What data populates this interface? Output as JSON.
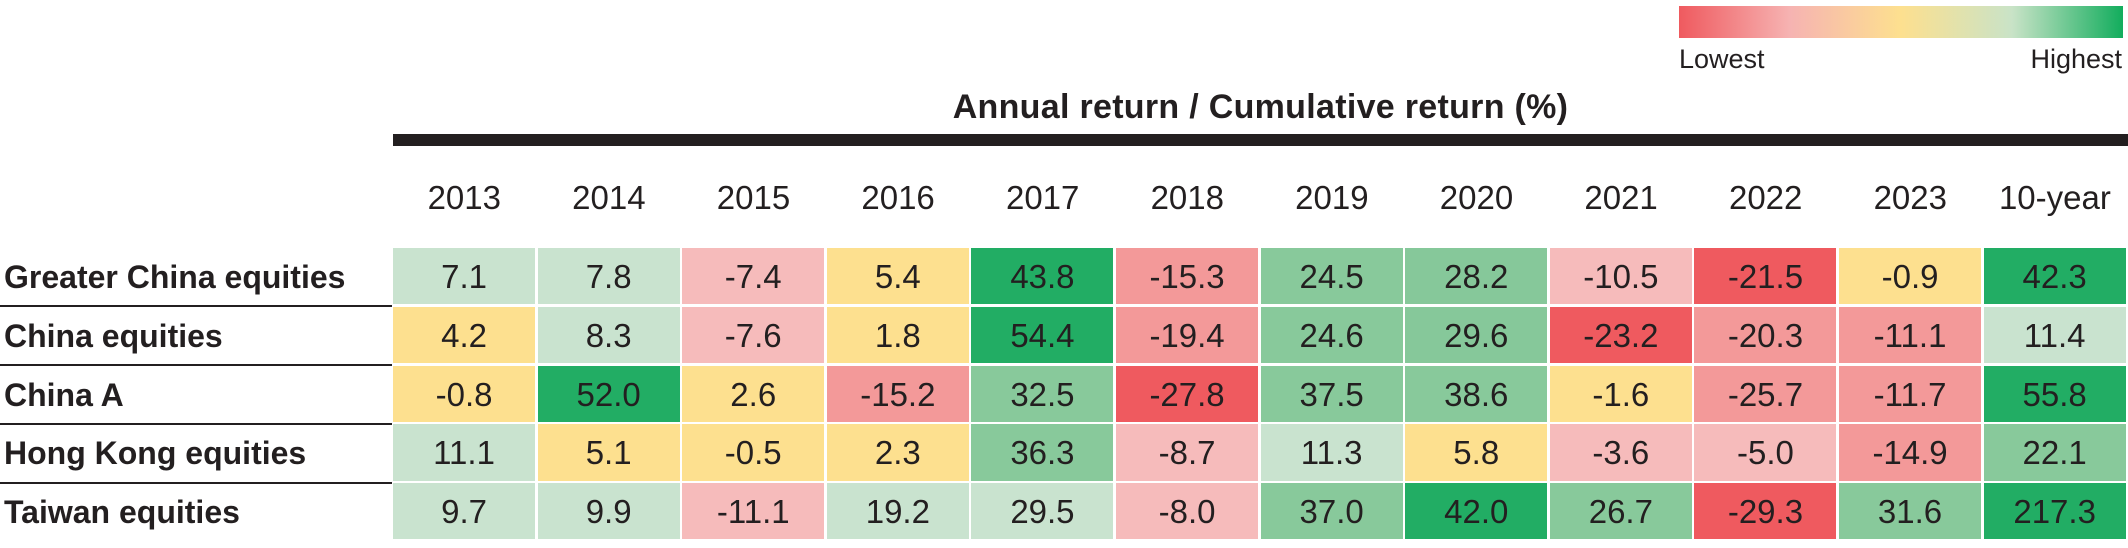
{
  "legend": {
    "low_label": "Lowest",
    "high_label": "Highest",
    "colors": [
      "#ef5a5f",
      "#f6b3b2",
      "#fde08f",
      "#c9e3c7",
      "#12ad5d"
    ]
  },
  "chart_data": {
    "type": "heatmap",
    "title": "Annual return / Cumulative return (%)",
    "columns": [
      "2013",
      "2014",
      "2015",
      "2016",
      "2017",
      "2018",
      "2019",
      "2020",
      "2021",
      "2022",
      "2023",
      "10-year"
    ],
    "rows": [
      {
        "label": "Greater China equities",
        "values": [
          "7.1",
          "7.8",
          "-7.4",
          "5.4",
          "43.8",
          "-15.3",
          "24.5",
          "28.2",
          "-10.5",
          "-21.5",
          "-0.9",
          "42.3"
        ],
        "colors": [
          "#c9e3cf",
          "#c9e3cf",
          "#f6bbbb",
          "#fde08f",
          "#22ad64",
          "#f39999",
          "#88c99b",
          "#86c89a",
          "#f6bbbb",
          "#ef5a5f",
          "#fde08f",
          "#22ad64"
        ]
      },
      {
        "label": "China equities",
        "values": [
          "4.2",
          "8.3",
          "-7.6",
          "1.8",
          "54.4",
          "-19.4",
          "24.6",
          "29.6",
          "-23.2",
          "-20.3",
          "-11.1",
          "11.4"
        ],
        "colors": [
          "#fde08f",
          "#c9e3cf",
          "#f6bbbb",
          "#fde08f",
          "#22ad64",
          "#f39999",
          "#88c99b",
          "#86c89a",
          "#ef5a5f",
          "#f39999",
          "#f39999",
          "#c9e3cf"
        ]
      },
      {
        "label": "China A",
        "values": [
          "-0.8",
          "52.0",
          "2.6",
          "-15.2",
          "32.5",
          "-27.8",
          "37.5",
          "38.6",
          "-1.6",
          "-25.7",
          "-11.7",
          "55.8"
        ],
        "colors": [
          "#fde08f",
          "#22ad64",
          "#fde08f",
          "#f39999",
          "#88c99b",
          "#ef5a5f",
          "#88c99b",
          "#88c99b",
          "#fde08f",
          "#f39999",
          "#f39999",
          "#22ad64"
        ]
      },
      {
        "label": "Hong Kong equities",
        "values": [
          "11.1",
          "5.1",
          "-0.5",
          "2.3",
          "36.3",
          "-8.7",
          "11.3",
          "5.8",
          "-3.6",
          "-5.0",
          "-14.9",
          "22.1"
        ],
        "colors": [
          "#c9e3cf",
          "#fde08f",
          "#fde08f",
          "#fde08f",
          "#88c99b",
          "#f6bbbb",
          "#c9e3cf",
          "#fde08f",
          "#f6bbbb",
          "#f6bbbb",
          "#f39999",
          "#88c99b"
        ]
      },
      {
        "label": "Taiwan equities",
        "values": [
          "9.7",
          "9.9",
          "-11.1",
          "19.2",
          "29.5",
          "-8.0",
          "37.0",
          "42.0",
          "26.7",
          "-29.3",
          "31.6",
          "217.3"
        ],
        "colors": [
          "#c9e3cf",
          "#c9e3cf",
          "#f6bbbb",
          "#c9e3cf",
          "#c9e3cf",
          "#f6bbbb",
          "#88c99b",
          "#22ad64",
          "#88c99b",
          "#ef5a5f",
          "#88c99b",
          "#22ad64"
        ]
      }
    ]
  }
}
